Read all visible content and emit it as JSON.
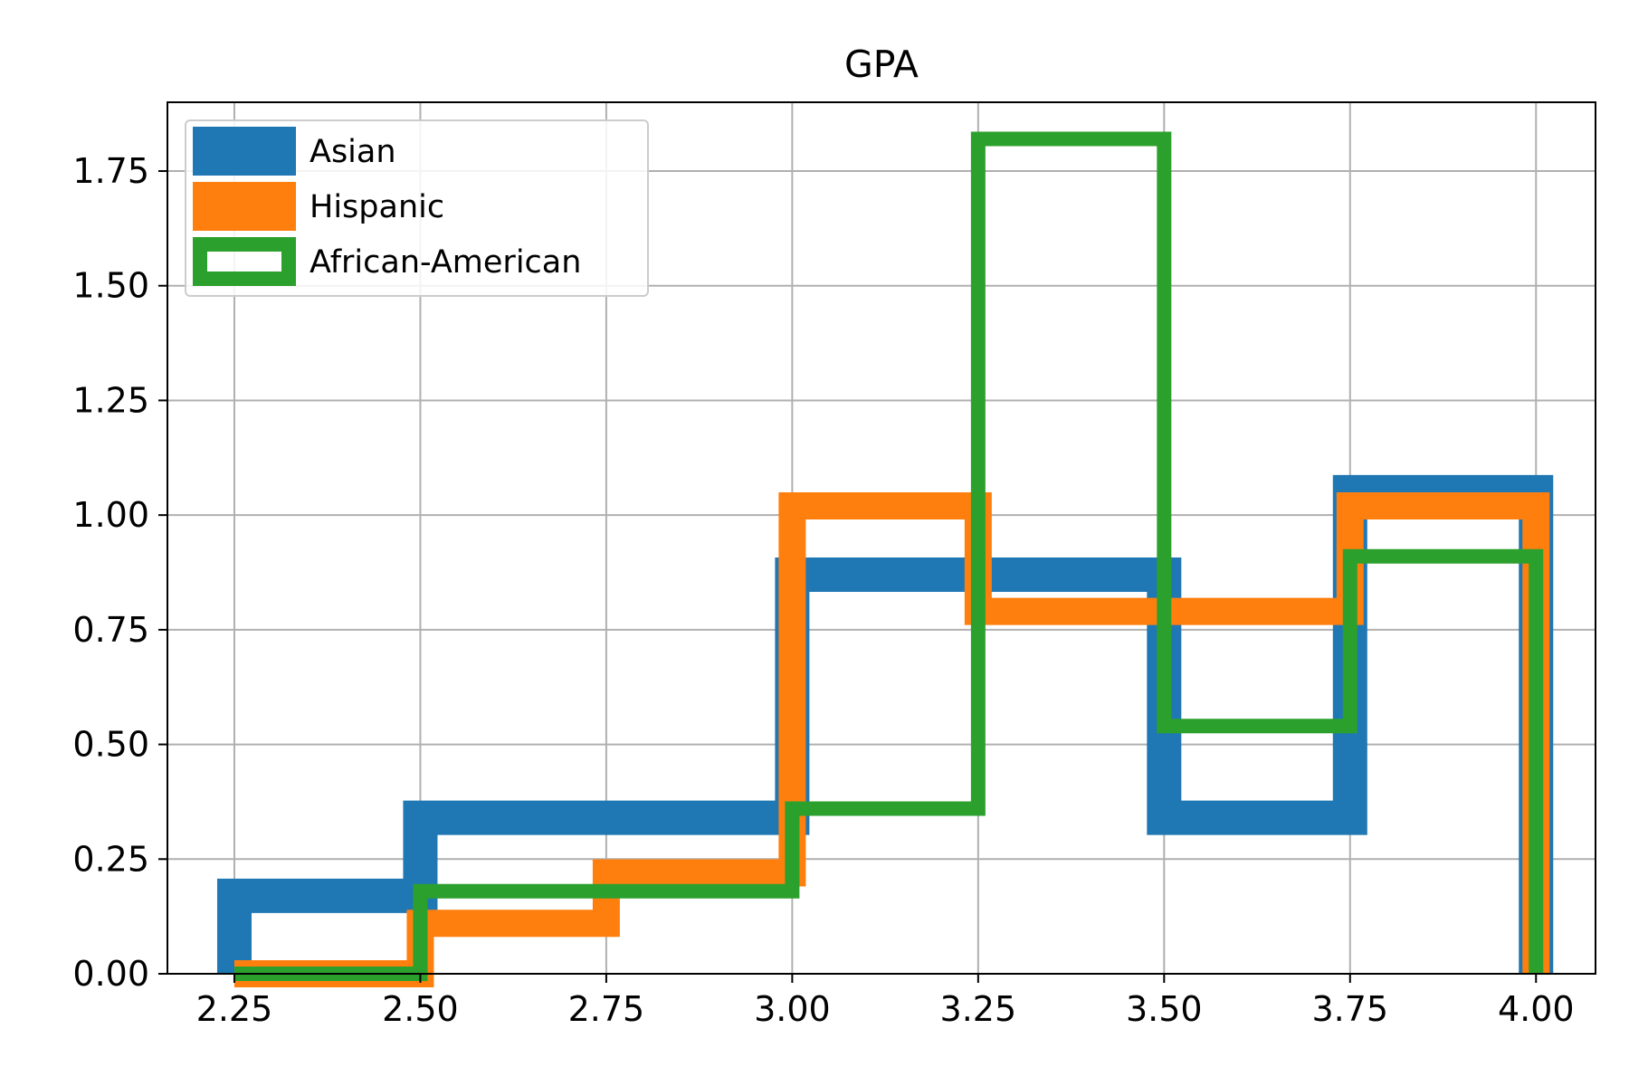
{
  "chart_data": {
    "type": "histogram",
    "title": "GPA",
    "xlabel": "",
    "ylabel": "",
    "xlim": [
      2.16,
      4.08
    ],
    "ylim": [
      0,
      1.9
    ],
    "grid": true,
    "legend_position": "top-left",
    "x_ticks": [
      "2.25",
      "2.50",
      "2.75",
      "3.00",
      "3.25",
      "3.50",
      "3.75",
      "4.00"
    ],
    "y_ticks": [
      "0.00",
      "0.25",
      "0.50",
      "0.75",
      "1.00",
      "1.25",
      "1.50",
      "1.75"
    ],
    "series": [
      {
        "name": "Asian",
        "color": "#1f77b4",
        "line_width": "thick",
        "bin_edges": [
          2.25,
          2.5,
          3.0,
          3.5,
          3.75,
          4.0
        ],
        "values": [
          0.17,
          0.34,
          0.87,
          0.34,
          1.05
        ]
      },
      {
        "name": "Hispanic",
        "color": "#ff7f0e",
        "line_width": "medium",
        "bin_edges": [
          2.25,
          2.5,
          2.75,
          3.0,
          3.25,
          3.75,
          4.0
        ],
        "values": [
          0.0,
          0.11,
          0.22,
          1.02,
          0.79,
          1.02
        ]
      },
      {
        "name": "African-American",
        "color": "#2ca02c",
        "line_width": "thin",
        "bin_edges": [
          2.25,
          2.5,
          3.0,
          3.25,
          3.5,
          3.75,
          4.0
        ],
        "values": [
          0.0,
          0.18,
          0.36,
          1.82,
          0.54,
          0.91
        ]
      }
    ]
  }
}
